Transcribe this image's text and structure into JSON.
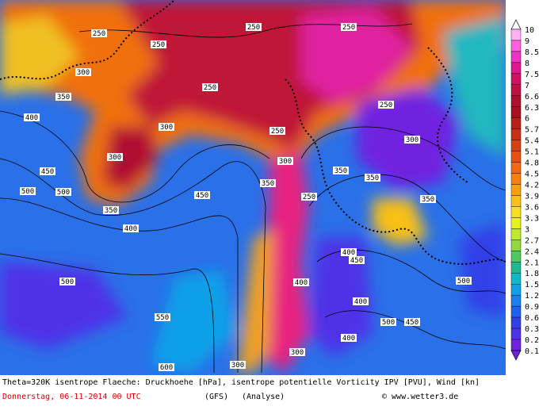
{
  "footer": {
    "line1": "Theta=320K isentrope Flaeche: Druckhoehe [hPa], isentrope potentielle Vorticity IPV [PVU], Wind [kn]",
    "date": "Donnerstag, 06-11-2014  00 UTC",
    "model": "(GFS)",
    "run": "(Analyse)",
    "credit": "© www.wetter3.de"
  },
  "colorbar": [
    {
      "label": "10",
      "color": "#ffffff"
    },
    {
      "label": "9",
      "color": "#ffb0f0"
    },
    {
      "label": "8.5",
      "color": "#ff60e0"
    },
    {
      "label": "8",
      "color": "#f030c8"
    },
    {
      "label": "7.5",
      "color": "#e01890"
    },
    {
      "label": "7",
      "color": "#d01060"
    },
    {
      "label": "6.6",
      "color": "#c01040"
    },
    {
      "label": "6.3",
      "color": "#b01030"
    },
    {
      "label": "6",
      "color": "#a81020"
    },
    {
      "label": "5.7",
      "color": "#b82018"
    },
    {
      "label": "5.4",
      "color": "#c83018"
    },
    {
      "label": "5.1",
      "color": "#d84010"
    },
    {
      "label": "4.8",
      "color": "#e85010"
    },
    {
      "label": "4.5",
      "color": "#f06810"
    },
    {
      "label": "4.2",
      "color": "#f88010"
    },
    {
      "label": "3.9",
      "color": "#f8a010"
    },
    {
      "label": "3.6",
      "color": "#f8c018"
    },
    {
      "label": "3.3",
      "color": "#f8e020"
    },
    {
      "label": "3",
      "color": "#e8f020"
    },
    {
      "label": "2.7",
      "color": "#c0e830"
    },
    {
      "label": "2.4",
      "color": "#90d840"
    },
    {
      "label": "2.1",
      "color": "#50c860"
    },
    {
      "label": "1.8",
      "color": "#20b890"
    },
    {
      "label": "1.5",
      "color": "#10b8c8"
    },
    {
      "label": "1.2",
      "color": "#10a0e8"
    },
    {
      "label": "0.9",
      "color": "#1880f0"
    },
    {
      "label": "0.6",
      "color": "#2060f0"
    },
    {
      "label": "0.3",
      "color": "#3040e8"
    },
    {
      "label": "0.2",
      "color": "#5030e8"
    },
    {
      "label": "0.1",
      "color": "#7020e0"
    }
  ],
  "contour_labels": [
    "250",
    "250",
    "250",
    "250",
    "250",
    "300",
    "350",
    "250",
    "400",
    "450",
    "500",
    "500",
    "350",
    "300",
    "300",
    "350",
    "400",
    "450",
    "500",
    "550",
    "600",
    "250",
    "300",
    "350",
    "350",
    "400",
    "450",
    "400",
    "500",
    "250",
    "300",
    "350",
    "400",
    "400",
    "450",
    "500",
    "300",
    "300"
  ]
}
